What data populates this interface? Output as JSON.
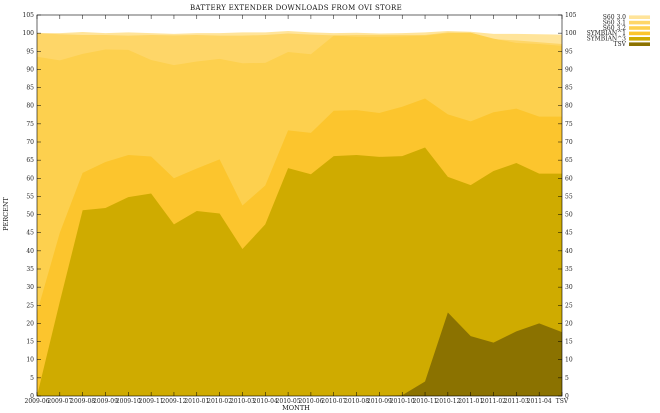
{
  "chart_data": {
    "type": "area",
    "title": "BATTERY EXTENDER DOWNLOADS FROM OVI STORE",
    "xlabel": "MONTH",
    "ylabel": "PERCENT",
    "ylim": [
      0,
      105
    ],
    "yticks": [
      0,
      5,
      10,
      15,
      20,
      25,
      30,
      35,
      40,
      45,
      50,
      55,
      60,
      65,
      70,
      75,
      80,
      85,
      90,
      95,
      100,
      105
    ],
    "xtick_labels": [
      "2009-06",
      "2009-07",
      "2009-08",
      "2009-09",
      "2009-10",
      "2009-11",
      "2009-12",
      "2010-01",
      "2010-02",
      "2010-03",
      "2010-04",
      "2010-05",
      "2010-06",
      "2010-07",
      "2010-08",
      "2010-09",
      "2010-10",
      "2010-11",
      "2010-12",
      "2011-01",
      "2011-02",
      "2011-03",
      "2011-04",
      "TSV"
    ],
    "x": [
      0,
      1,
      2,
      3,
      4,
      5,
      6,
      7,
      8,
      9,
      10,
      11,
      12,
      13,
      14,
      15,
      16,
      17,
      18,
      19,
      20,
      21,
      22,
      23
    ],
    "stacking": "cumulative",
    "legend_position": "right",
    "grid": false,
    "series": [
      {
        "name": "S60 3.0",
        "color": "#ffe49a",
        "cumulative": [
          100,
          100,
          100.3,
          100,
          100.2,
          100,
          99.8,
          100,
          100,
          100.2,
          100.2,
          100.6,
          100.2,
          100,
          100.1,
          99.9,
          100,
          100.2,
          100.6,
          100.4,
          99.8,
          99.8,
          99.7,
          99.6
        ]
      },
      {
        "name": "S60 3.1",
        "color": "#fed668",
        "cumulative": [
          100,
          99.7,
          99.5,
          99.5,
          99.3,
          99.5,
          99.4,
          99.5,
          99.3,
          99.3,
          99.5,
          99.9,
          99.6,
          99.4,
          99.5,
          99.5,
          99.5,
          99.5,
          100.2,
          100.1,
          98.3,
          98.0,
          97.5,
          97.0
        ]
      },
      {
        "name": "S60 3.2",
        "color": "#fdd04e",
        "cumulative": [
          93.5,
          92.5,
          94.3,
          95.5,
          95.4,
          92.6,
          91.2,
          92.2,
          92.9,
          91.7,
          91.8,
          94.8,
          94.2,
          99.3,
          99.0,
          99.0,
          99.1,
          99.3,
          100.0,
          100.1,
          98.5,
          97.3,
          97.0,
          96.5
        ]
      },
      {
        "name": "SYMBIAN^1",
        "color": "#fcc52d",
        "cumulative": [
          23,
          45,
          61.5,
          64.5,
          66.4,
          66,
          60,
          62.7,
          65.2,
          52.5,
          58,
          73.2,
          72.5,
          78.6,
          78.8,
          78.0,
          79.7,
          82.0,
          77.6,
          75.7,
          78.2,
          79.2,
          77.0,
          77.0
        ]
      },
      {
        "name": "SYMBIAN^3",
        "color": "#cfab00",
        "cumulative": [
          0,
          26,
          51.2,
          51.8,
          54.8,
          55.8,
          47.3,
          51.0,
          50.3,
          40.5,
          47.3,
          62.8,
          61.1,
          66.1,
          66.4,
          65.9,
          66.1,
          68.5,
          60.4,
          58.1,
          62.0,
          64.2,
          61.3,
          61.3
        ]
      },
      {
        "name": "TSV",
        "color": "#8b7200",
        "cumulative": [
          0,
          0,
          0,
          0,
          0,
          0,
          0,
          0,
          0,
          0,
          0,
          0,
          0,
          0,
          0,
          0,
          0.2,
          4,
          23,
          16.5,
          14.7,
          17.8,
          20,
          17.6
        ]
      }
    ]
  }
}
